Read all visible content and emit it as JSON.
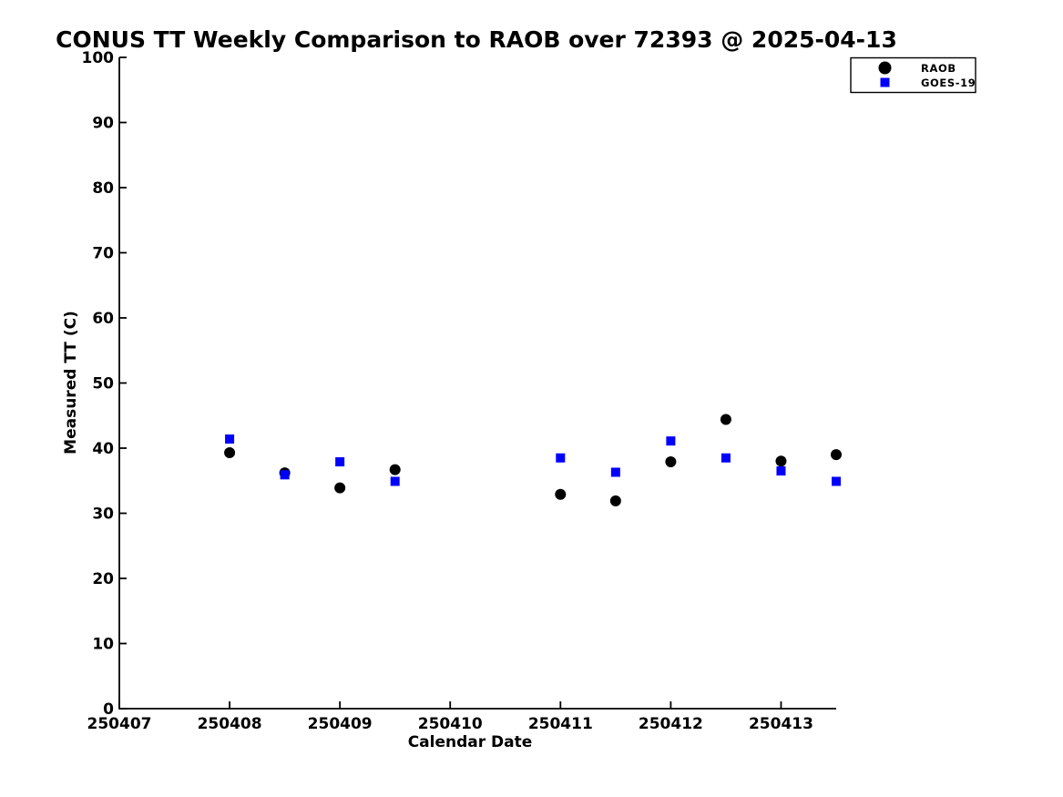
{
  "chart_data": {
    "type": "scatter",
    "title": "CONUS TT Weekly Comparison to RAOB over 72393 @ 2025-04-13",
    "xlabel": "Calendar Date",
    "ylabel": "Measured TT (C)",
    "xlim": [
      250407,
      250413.5
    ],
    "ylim": [
      0,
      100
    ],
    "x_tick_labels": [
      "250407",
      "250408",
      "250409",
      "250410",
      "250411",
      "250412",
      "250413"
    ],
    "x_tick_values": [
      250407,
      250408,
      250409,
      250410,
      250411,
      250412,
      250413
    ],
    "y_ticks": [
      0,
      10,
      20,
      30,
      40,
      50,
      60,
      70,
      80,
      90,
      100
    ],
    "grid": false,
    "legend": {
      "position": "top-right",
      "entries": [
        "RAOB",
        "GOES-19"
      ]
    },
    "series": [
      {
        "name": "RAOB",
        "marker": "circle",
        "color": "#000000",
        "x": [
          250408,
          250408.5,
          250409,
          250409.5,
          250411,
          250411.5,
          250412,
          250412.5,
          250413,
          250413.5
        ],
        "y": [
          39.3,
          36.2,
          33.9,
          36.7,
          32.9,
          31.9,
          37.9,
          44.4,
          38.0,
          39.0
        ]
      },
      {
        "name": "GOES-19",
        "marker": "square",
        "color": "#0000ff",
        "x": [
          250408,
          250408.5,
          250409,
          250409.5,
          250411,
          250411.5,
          250412,
          250412.5,
          250413,
          250413.5
        ],
        "y": [
          41.4,
          35.9,
          37.9,
          34.9,
          38.5,
          36.3,
          41.1,
          38.5,
          36.5,
          34.9
        ]
      }
    ]
  }
}
